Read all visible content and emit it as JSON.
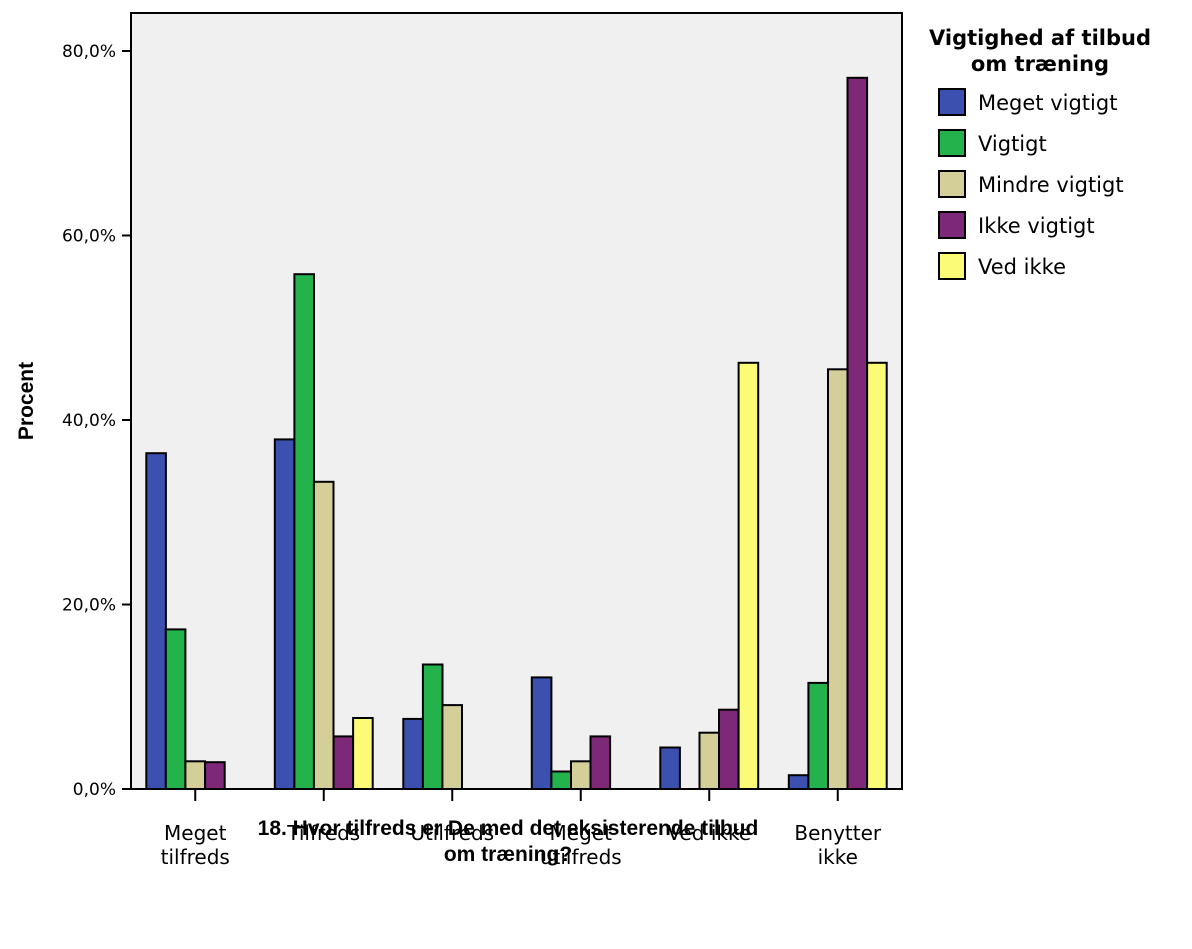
{
  "chart_data": {
    "type": "bar",
    "xlabel_lines": [
      "18. Hvor tilfreds er De med det eksisterende tilbud",
      "om træning?"
    ],
    "ylabel": "Procent",
    "ylim": [
      0,
      80
    ],
    "yticks": [
      "0,0%",
      "20,0%",
      "40,0%",
      "60,0%",
      "80,0%"
    ],
    "ytick_values": [
      0,
      20,
      40,
      60,
      80
    ],
    "categories": [
      [
        "Meget",
        "tilfreds"
      ],
      [
        "Tilfreds"
      ],
      [
        "Utilfreds"
      ],
      [
        "Meget",
        "utilfreds"
      ],
      [
        "Ved ikke"
      ],
      [
        "Benytter",
        "ikke"
      ]
    ],
    "legend_title_lines": [
      "Vigtighed af tilbud",
      "om træning"
    ],
    "legend_position": "right",
    "grid": false,
    "background": "#f0f0f0",
    "series": [
      {
        "name": "Meget vigtigt",
        "color": "#3c50b0",
        "values": [
          36.4,
          37.9,
          7.6,
          12.1,
          4.5,
          1.5
        ]
      },
      {
        "name": "Vigtigt",
        "color": "#23b24b",
        "values": [
          17.3,
          55.8,
          13.5,
          1.9,
          0.0,
          11.5
        ]
      },
      {
        "name": "Mindre vigtigt",
        "color": "#d4cf98",
        "values": [
          3.0,
          33.3,
          9.1,
          3.0,
          6.1,
          45.5
        ]
      },
      {
        "name": "Ikke vigtigt",
        "color": "#7d2878",
        "values": [
          2.9,
          5.7,
          0.0,
          5.7,
          8.6,
          77.1
        ]
      },
      {
        "name": "Ved ikke",
        "color": "#fbfb78",
        "values": [
          0.0,
          7.7,
          0.0,
          0.0,
          46.2,
          46.2
        ]
      }
    ]
  }
}
